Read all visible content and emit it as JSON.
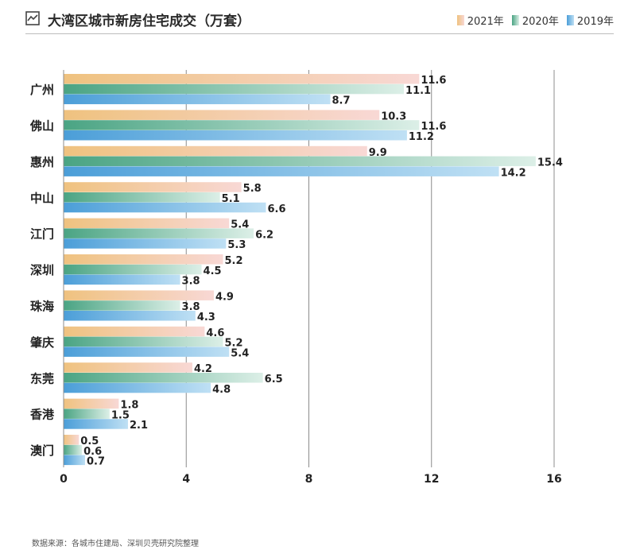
{
  "chart_data": {
    "type": "bar",
    "orientation": "horizontal",
    "title": "大湾区城市新房住宅成交（万套）",
    "categories": [
      "广州",
      "佛山",
      "惠州",
      "中山",
      "江门",
      "深圳",
      "珠海",
      "肇庆",
      "东莞",
      "香港",
      "澳门"
    ],
    "series": [
      {
        "name": "2021年",
        "values": [
          11.6,
          10.3,
          9.9,
          5.8,
          5.4,
          5.2,
          4.9,
          4.6,
          4.2,
          1.8,
          0.5
        ],
        "labels": [
          "11.6",
          "10.3",
          "9.9",
          "5.8",
          "5.4",
          "5.2",
          "4.9",
          "4.6",
          "4.2",
          "1.8",
          "0.5"
        ],
        "color": "#efc27f",
        "color_end": "#f8d8d5"
      },
      {
        "name": "2020年",
        "values": [
          11.1,
          11.6,
          15.4,
          5.1,
          6.2,
          4.5,
          3.8,
          5.2,
          6.5,
          1.5,
          0.6
        ],
        "labels": [
          "11.1",
          "11.6",
          "15.4",
          "5.1",
          "6.2",
          "4.5",
          "3.8",
          "5.2",
          "6.5",
          "1.5",
          "0.6"
        ],
        "color": "#4aa483",
        "color_end": "#dcefe7"
      },
      {
        "name": "2019年",
        "values": [
          8.7,
          11.2,
          14.2,
          6.6,
          5.3,
          3.8,
          4.3,
          5.4,
          4.8,
          2.1,
          0.7
        ],
        "labels": [
          "8.7",
          "11.2",
          "14.2",
          "6.6",
          "5.3",
          "3.8",
          "4.3",
          "5.4",
          "4.8",
          "2.1",
          "0.7"
        ],
        "color": "#4b9ed8",
        "color_end": "#bfe0f4"
      }
    ],
    "xlim": [
      0,
      16
    ],
    "xticks": [
      0,
      4,
      8,
      12,
      16
    ],
    "xtick_labels": [
      "0",
      "4",
      "8",
      "12",
      "16"
    ],
    "grid": true,
    "legend_position": "top-right"
  },
  "source_note": "数据来源：各城市住建局、深圳贝壳研究院整理",
  "icon": "trend-line-icon"
}
